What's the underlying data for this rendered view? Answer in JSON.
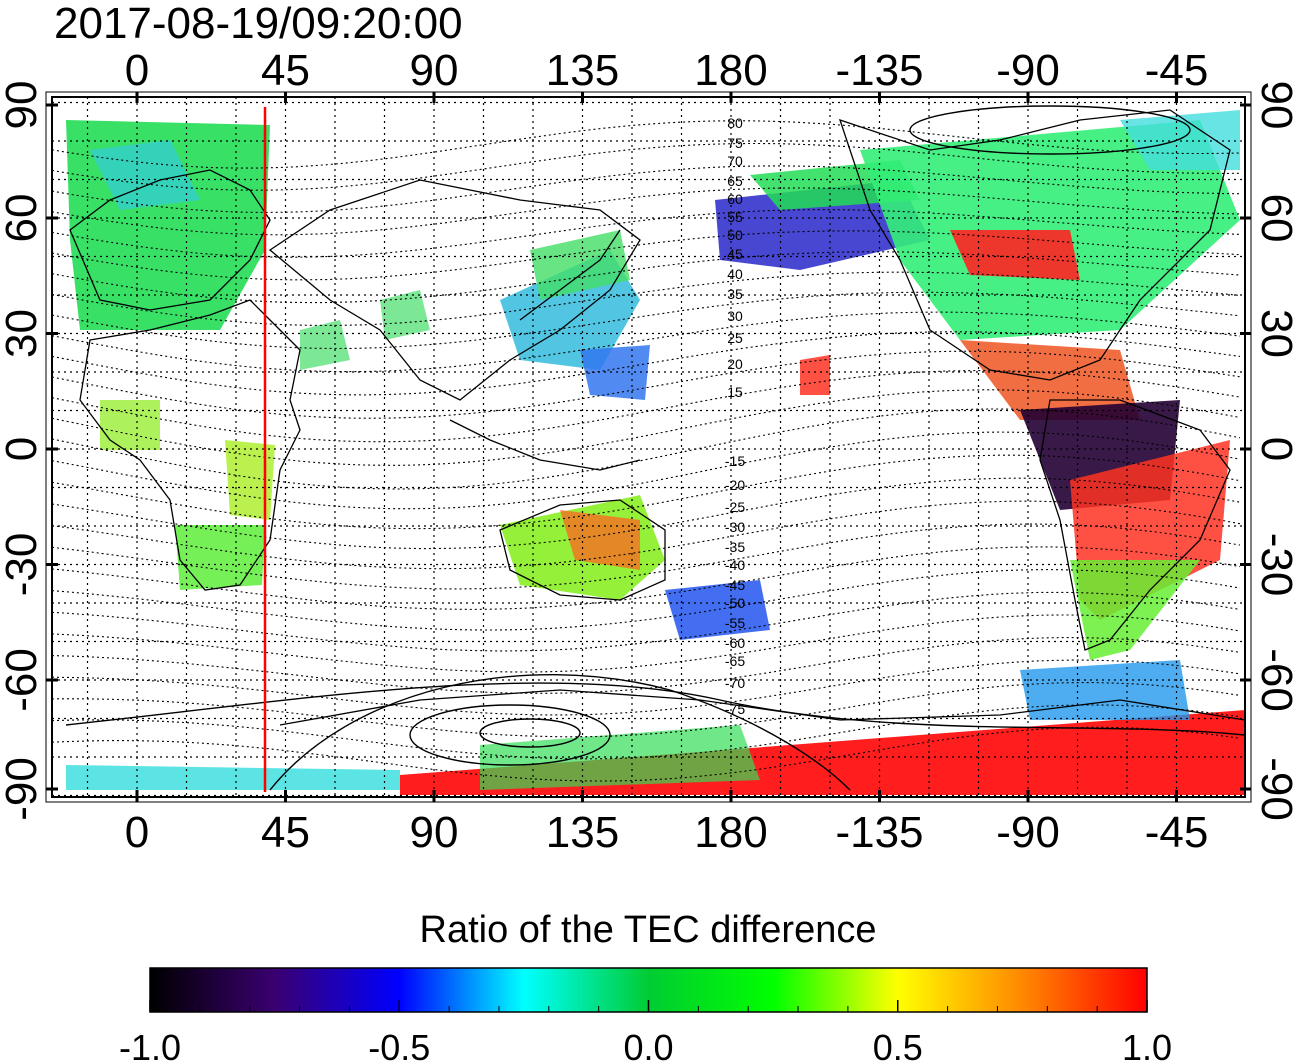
{
  "timestamp": "2017-08-19/09:20:00",
  "map": {
    "lon_ticks": [
      "0",
      "45",
      "90",
      "135",
      "180",
      "-135",
      "-90",
      "-45"
    ],
    "lat_ticks": [
      "90",
      "60",
      "30",
      "0",
      "-30",
      "-60",
      "-90"
    ],
    "contour_labels": [
      "80",
      "75",
      "70",
      "65",
      "60",
      "55",
      "50",
      "45",
      "40",
      "35",
      "30",
      "25",
      "20",
      "15",
      "-15",
      "-20",
      "-25",
      "-30",
      "-35",
      "-40",
      "-45",
      "-50",
      "-55",
      "-60",
      "-65",
      "-70",
      "-75"
    ],
    "highlight_meridian_color": "#ff0000",
    "frame_color": "#000000"
  },
  "colorbar": {
    "title": "Ratio of the TEC difference",
    "ticks": [
      "-1.0",
      "-0.5",
      "0.0",
      "0.5",
      "1.0"
    ],
    "range": [
      -1.0,
      1.0
    ],
    "stops": [
      "#000000",
      "#3a0070",
      "#0000ff",
      "#00ffff",
      "#00cc33",
      "#00ff00",
      "#ffff00",
      "#ff8800",
      "#ff0000"
    ]
  }
}
